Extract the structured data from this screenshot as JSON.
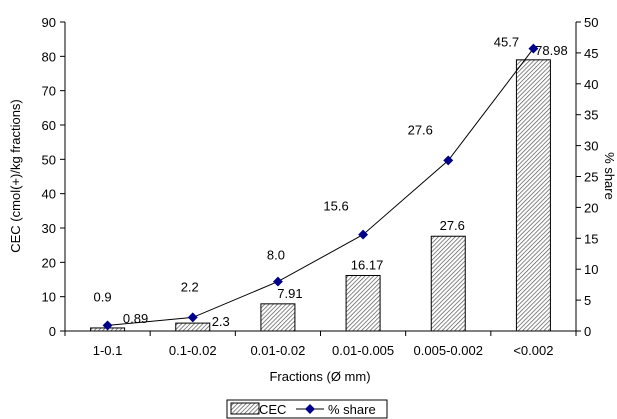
{
  "chart_data": {
    "type": "bar",
    "categories": [
      "1-0.1",
      "0.1-0.02",
      "0.01-0.02",
      "0.01-0.005",
      "0.005-0.002",
      "<0.002"
    ],
    "series": [
      {
        "name": "CEC",
        "type": "bar",
        "axis": "left",
        "values": [
          0.89,
          2.3,
          7.91,
          16.17,
          27.6,
          78.98
        ],
        "labels": [
          "0.89",
          "2.3",
          "7.91",
          "16.17",
          "27.6",
          "78.98"
        ]
      },
      {
        "name": "% share",
        "type": "line",
        "axis": "right",
        "values": [
          0.9,
          2.2,
          8.0,
          15.6,
          27.6,
          45.7
        ],
        "labels": [
          "0.9",
          "2.2",
          "8.0",
          "15.6",
          "27.6",
          "45.7"
        ],
        "color": "#00008B"
      }
    ],
    "xlabel": "Fractions (Ø mm)",
    "ylabel": "CEC (cmol(+)/kg fractions)",
    "y2label": "% share",
    "ylim": [
      0,
      90
    ],
    "y2lim": [
      0,
      50
    ],
    "yticks": [
      0,
      10,
      20,
      30,
      40,
      50,
      60,
      70,
      80,
      90
    ],
    "y2ticks": [
      0,
      5,
      10,
      15,
      20,
      25,
      30,
      35,
      40,
      45,
      50
    ],
    "grid": false,
    "legend_position": "bottom"
  }
}
